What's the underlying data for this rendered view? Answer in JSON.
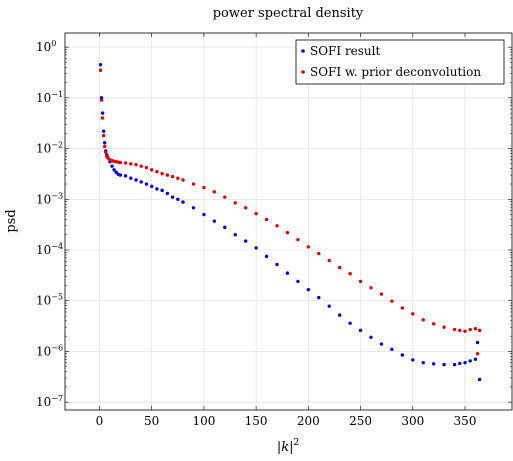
{
  "chart_data": {
    "type": "scatter",
    "title": "power spectral density",
    "xlabel": "|k|",
    "xlabel_sup": "2",
    "ylabel": "psd",
    "x_scale": "linear",
    "y_scale": "log",
    "xlim": [
      -33,
      395
    ],
    "ylim": [
      7e-08,
      1.9
    ],
    "x_ticks": [
      0,
      50,
      100,
      150,
      200,
      250,
      300,
      350
    ],
    "x_tick_labels": [
      "0",
      "50",
      "100",
      "150",
      "200",
      "250",
      "300",
      "350"
    ],
    "y_ticks": [
      1e-07,
      1e-06,
      1e-05,
      0.0001,
      0.001,
      0.01,
      0.1,
      1
    ],
    "y_tick_mantissa": [
      "10",
      "10",
      "10",
      "10",
      "10",
      "10",
      "10",
      "10"
    ],
    "y_tick_exponents": [
      "−7",
      "−6",
      "−5",
      "−4",
      "−3",
      "−2",
      "−1",
      "0"
    ],
    "grid": true,
    "legend_position": "top-right",
    "series": [
      {
        "name": "SOFI result",
        "color": "#0000e6",
        "x": [
          1,
          2,
          3,
          4,
          5,
          6,
          7,
          8,
          10,
          12,
          14,
          16,
          18,
          20,
          25,
          30,
          35,
          40,
          45,
          50,
          55,
          60,
          65,
          70,
          75,
          80,
          90,
          100,
          110,
          120,
          130,
          140,
          150,
          160,
          170,
          180,
          190,
          200,
          210,
          220,
          230,
          240,
          250,
          260,
          270,
          280,
          290,
          300,
          310,
          320,
          330,
          340,
          345,
          350,
          355,
          360,
          362,
          364
        ],
        "y": [
          0.45,
          0.1,
          0.05,
          0.022,
          0.013,
          0.009,
          0.0075,
          0.0068,
          0.0055,
          0.0045,
          0.0038,
          0.0034,
          0.0031,
          0.003,
          0.0029,
          0.0026,
          0.0024,
          0.0022,
          0.002,
          0.0018,
          0.0016,
          0.0015,
          0.0013,
          0.0011,
          0.001,
          0.00088,
          0.00068,
          0.0005,
          0.00037,
          0.00028,
          0.0002,
          0.00015,
          0.00011,
          7.5e-05,
          5.2e-05,
          3.5e-05,
          2.4e-05,
          1.65e-05,
          1.15e-05,
          7.8e-06,
          5.2e-06,
          3.6e-06,
          2.6e-06,
          1.9e-06,
          1.4e-06,
          1.1e-06,
          8.5e-07,
          6.8e-07,
          6e-07,
          5.7e-07,
          5.5e-07,
          5.5e-07,
          5.8e-07,
          6e-07,
          6.5e-07,
          7e-07,
          1.5e-06,
          2.8e-07
        ]
      },
      {
        "name": "SOFI w. prior deconvolution",
        "color": "#e60000",
        "x": [
          1,
          2,
          3,
          4,
          5,
          6,
          7,
          8,
          10,
          12,
          14,
          16,
          18,
          20,
          25,
          30,
          35,
          40,
          45,
          50,
          55,
          60,
          65,
          70,
          75,
          80,
          90,
          100,
          110,
          120,
          130,
          140,
          150,
          160,
          170,
          180,
          190,
          200,
          210,
          220,
          230,
          240,
          250,
          260,
          270,
          280,
          290,
          300,
          310,
          320,
          330,
          340,
          345,
          350,
          355,
          360,
          362,
          364
        ],
        "y": [
          0.35,
          0.09,
          0.04,
          0.018,
          0.011,
          0.0085,
          0.007,
          0.0065,
          0.006,
          0.0058,
          0.0056,
          0.0055,
          0.0054,
          0.0053,
          0.0052,
          0.005,
          0.0048,
          0.0045,
          0.0042,
          0.0038,
          0.0035,
          0.0032,
          0.003,
          0.0028,
          0.0026,
          0.0024,
          0.002,
          0.0017,
          0.0014,
          0.0011,
          0.00085,
          0.00068,
          0.00052,
          0.0004,
          0.0003,
          0.00022,
          0.00016,
          0.000115,
          8.5e-05,
          6.2e-05,
          4.5e-05,
          3.4e-05,
          2.4e-05,
          1.8e-05,
          1.35e-05,
          9.8e-06,
          7.2e-06,
          5.5e-06,
          4.2e-06,
          3.5e-06,
          3e-06,
          2.7e-06,
          2.6e-06,
          2.5e-06,
          2.7e-06,
          2.8e-06,
          9e-07,
          2.6e-06
        ]
      }
    ]
  }
}
